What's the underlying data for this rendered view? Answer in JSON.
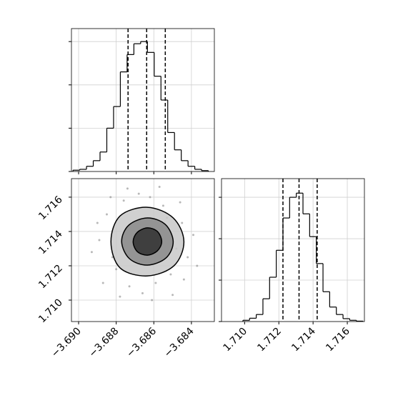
{
  "chart_data": [
    {
      "type": "histogram",
      "bins": [
        -3.6903,
        -3.68994,
        -3.68958,
        -3.68922,
        -3.68886,
        -3.6885,
        -3.68814,
        -3.68778,
        -3.68742,
        -3.68706,
        -3.6867,
        -3.68634,
        -3.68598,
        -3.68562,
        -3.68526,
        -3.6849,
        -3.68454,
        -3.68418,
        -3.68382,
        -3.68346,
        -3.6831
      ],
      "values": [
        0.03,
        0.05,
        0.12,
        0.25,
        0.45,
        1.0,
        1.5,
        2.3,
        2.7,
        2.95,
        3.0,
        2.75,
        2.2,
        1.65,
        0.9,
        0.5,
        0.25,
        0.12,
        0.05,
        0.02
      ],
      "quantiles": [
        -3.68737,
        -3.68638,
        -3.68539
      ],
      "color": "#000000",
      "xlim": [
        -3.69038,
        -3.68278
      ],
      "xticks": [
        -3.69,
        -3.688,
        -3.686,
        -3.684
      ],
      "ylim": [
        0,
        3.3
      ],
      "yticks": [
        0,
        1,
        2,
        3
      ],
      "grid": true
    },
    {
      "type": "contour",
      "points": {
        "color": "#888888",
        "x": [
          -3.6889,
          -3.6885,
          -3.688,
          -3.6876,
          -3.6873,
          -3.687,
          -3.6868,
          -3.6866,
          -3.6862,
          -3.6859,
          -3.6855,
          -3.6851,
          -3.6848,
          -3.6845,
          -3.6842,
          -3.6839,
          -3.6893,
          -3.6887,
          -3.6883,
          -3.6878,
          -3.6857,
          -3.685,
          -3.6846,
          -3.6837,
          -3.689,
          -3.6874,
          -3.6861,
          -3.6853,
          -3.6882,
          -3.6844
        ],
        "y": [
          1.7135,
          1.715,
          1.7118,
          1.7158,
          1.7108,
          1.714,
          1.7162,
          1.7104,
          1.716,
          1.711,
          1.7155,
          1.7115,
          1.713,
          1.7145,
          1.7125,
          1.7138,
          1.7128,
          1.711,
          1.716,
          1.7102,
          1.7166,
          1.7103,
          1.7157,
          1.712,
          1.7145,
          1.7165,
          1.71,
          1.7148,
          1.7125,
          1.7112
        ]
      },
      "contours": [
        {
          "color": "#c8c8c8",
          "x": [
            -3.6844,
            -3.68497,
            -3.68634,
            -3.68779,
            -3.68828,
            -3.68779,
            -3.68634,
            -3.68493
          ],
          "y": [
            1.71341,
            1.71479,
            1.71541,
            1.71491,
            1.71341,
            1.71187,
            1.71141,
            1.712
          ]
        },
        {
          "color": "#8a8a8a",
          "x": [
            -3.68497,
            -3.68539,
            -3.68634,
            -3.68733,
            -3.68771,
            -3.68729,
            -3.68634,
            -3.68535
          ],
          "y": [
            1.71341,
            1.71441,
            1.71479,
            1.71437,
            1.71341,
            1.71241,
            1.71204,
            1.71246
          ]
        },
        {
          "color": "#303030",
          "x": [
            -3.68558,
            -3.68581,
            -3.68634,
            -3.68688,
            -3.6871,
            -3.68688,
            -3.68634,
            -3.68581
          ],
          "y": [
            1.71341,
            1.714,
            1.71421,
            1.71395,
            1.71341,
            1.71283,
            1.71262,
            1.71287
          ]
        }
      ],
      "xlim": [
        -3.69038,
        -3.68278
      ],
      "xticks": [
        {
          "value": -3.69,
          "label": "−3.690"
        },
        {
          "value": -3.688,
          "label": "−3.688"
        },
        {
          "value": -3.686,
          "label": "−3.686"
        },
        {
          "value": -3.684,
          "label": "−3.684"
        }
      ],
      "ylim": [
        1.70875,
        1.71708
      ],
      "yticks": [
        {
          "value": 1.71,
          "label": "1.710"
        },
        {
          "value": 1.712,
          "label": "1.712"
        },
        {
          "value": 1.714,
          "label": "1.714"
        },
        {
          "value": 1.716,
          "label": "1.716"
        }
      ],
      "grid": true
    },
    {
      "type": "histogram",
      "bins": [
        1.7099,
        1.71029,
        1.71068,
        1.71107,
        1.71146,
        1.71185,
        1.71224,
        1.71263,
        1.71302,
        1.71341,
        1.7138,
        1.71419,
        1.71458,
        1.71497,
        1.71536,
        1.71575,
        1.71614,
        1.71653,
        1.71692
      ],
      "values": [
        0.03,
        0.08,
        0.17,
        0.55,
        1.07,
        1.72,
        2.5,
        3.0,
        3.1,
        2.6,
        2.05,
        1.4,
        0.72,
        0.35,
        0.17,
        0.07,
        0.03,
        0.01
      ],
      "quantiles": [
        1.71224,
        1.71318,
        1.71424
      ],
      "color": "#000000",
      "xlim": [
        1.70865,
        1.717
      ],
      "xticks": [
        {
          "value": 1.71,
          "label": "1.710"
        },
        {
          "value": 1.712,
          "label": "1.712"
        },
        {
          "value": 1.714,
          "label": "1.714"
        },
        {
          "value": 1.716,
          "label": "1.716"
        }
      ],
      "ylim": [
        0,
        3.45
      ],
      "yticks": [
        0,
        1,
        2,
        3
      ],
      "grid": true
    }
  ]
}
